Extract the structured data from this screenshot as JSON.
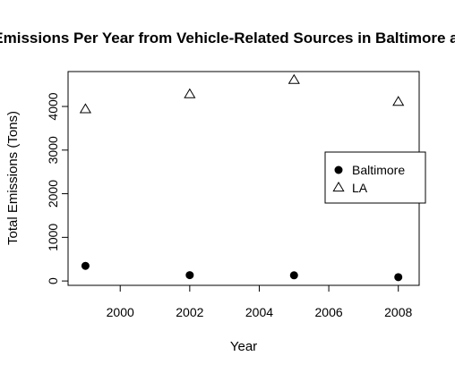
{
  "chart_data": {
    "type": "scatter",
    "title": "Total Emissions Per Year from Vehicle-Related Sources in Baltimore and LA",
    "xlabel": "Year",
    "ylabel": "Total Emissions (Tons)",
    "xlim": [
      1998.5,
      2008.6
    ],
    "ylim": [
      -100,
      4800
    ],
    "x_ticks": [
      2000,
      2002,
      2004,
      2006,
      2008
    ],
    "y_ticks": [
      0,
      1000,
      2000,
      3000,
      4000
    ],
    "grid": false,
    "legend_position": "right",
    "series": [
      {
        "name": "Baltimore",
        "marker": "filled-circle",
        "color": "#000000",
        "x": [
          1999,
          2002,
          2005,
          2008
        ],
        "y": [
          347,
          134,
          130,
          88
        ]
      },
      {
        "name": "LA",
        "marker": "open-triangle",
        "color": "#000000",
        "x": [
          1999,
          2002,
          2005,
          2008
        ],
        "y": [
          3931,
          4274,
          4601,
          4101
        ]
      }
    ]
  }
}
